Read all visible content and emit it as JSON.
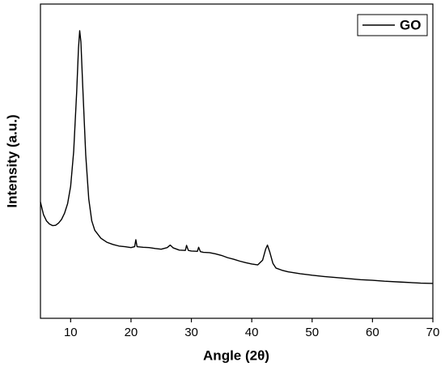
{
  "chart_data": {
    "type": "line",
    "x_label": "Angle (2θ)",
    "y_label": "Intensity (a.u.)",
    "xlim": [
      5,
      70
    ],
    "xticks": [
      10,
      20,
      30,
      40,
      50,
      60,
      70
    ],
    "ylim": [
      0,
      100
    ],
    "legend": "upper right",
    "series": [
      {
        "name": "GO",
        "color": "#000000",
        "x": [
          5,
          5.5,
          6,
          6.5,
          7,
          7.5,
          8,
          8.5,
          9,
          9.5,
          10,
          10.5,
          11,
          11.3,
          11.5,
          11.7,
          12,
          12.5,
          13,
          13.5,
          14,
          15,
          16,
          17,
          18,
          19,
          20,
          20.6,
          20.8,
          21,
          22,
          23,
          24,
          25,
          26,
          26.5,
          27,
          28,
          29,
          29.2,
          29.5,
          30,
          31,
          31.2,
          31.5,
          32,
          33,
          34,
          35,
          36,
          37,
          38,
          39,
          40,
          41,
          41.8,
          42.3,
          42.6,
          43,
          43.5,
          44,
          45,
          46,
          48,
          50,
          52,
          55,
          58,
          60,
          62,
          65,
          68,
          70
        ],
        "values": [
          37,
          33,
          31,
          30,
          29.5,
          29.6,
          30.3,
          31.5,
          33.5,
          36.5,
          42,
          53,
          72,
          86,
          91.5,
          88,
          74,
          52,
          38,
          31,
          28,
          25.5,
          24.2,
          23.5,
          23,
          22.8,
          22.5,
          22.8,
          25,
          22.8,
          22.6,
          22.5,
          22.2,
          22,
          22.5,
          23.3,
          22.4,
          21.7,
          21.6,
          23.2,
          21.6,
          21.4,
          21.3,
          22.6,
          21.2,
          21,
          20.9,
          20.5,
          20,
          19.3,
          18.8,
          18.2,
          17.7,
          17.3,
          17,
          18.5,
          22,
          23.3,
          21,
          17.5,
          16,
          15.3,
          14.8,
          14.2,
          13.7,
          13.3,
          12.8,
          12.3,
          12.1,
          11.8,
          11.5,
          11.2,
          11.1
        ]
      }
    ]
  }
}
